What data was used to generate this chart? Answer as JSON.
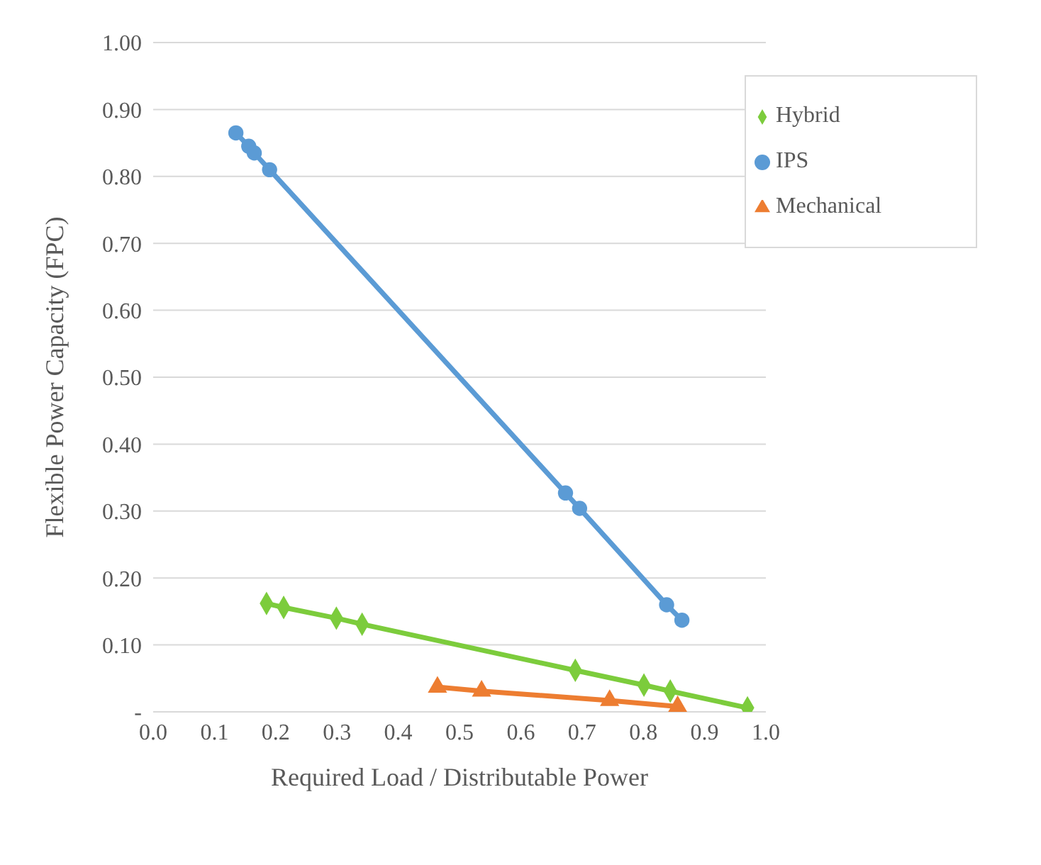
{
  "chart_data": {
    "type": "line",
    "xlabel": "Required Load / Distributable Power",
    "ylabel": "Flexible Power Capacity (FPC)",
    "xlim": [
      0,
      1
    ],
    "xticks": [
      {
        "value": 0,
        "label": "0.0"
      },
      0.1,
      0.2,
      0.3,
      0.4,
      0.5,
      0.6,
      0.7,
      0.8,
      0.9,
      {
        "value": 1,
        "label": "1.0"
      }
    ],
    "ylim": [
      0,
      1
    ],
    "yticks": [
      {
        "value": 0,
        "label": "-"
      },
      {
        "value": 0.1,
        "label": "0.10"
      },
      {
        "value": 0.2,
        "label": "0.20"
      },
      {
        "value": 0.3,
        "label": "0.30"
      },
      {
        "value": 0.4,
        "label": "0.40"
      },
      {
        "value": 0.5,
        "label": "0.50"
      },
      {
        "value": 0.6,
        "label": "0.60"
      },
      {
        "value": 0.7,
        "label": "0.70"
      },
      {
        "value": 0.8,
        "label": "0.80"
      },
      {
        "value": 0.9,
        "label": "0.90"
      },
      {
        "value": 1,
        "label": "1.00"
      }
    ],
    "grid": "y",
    "legend": "top right",
    "line_style": "solid",
    "series": [
      {
        "name": "IPS",
        "color": "#5b9bd5",
        "marker": "circle",
        "x": [
          0.135,
          0.156,
          0.165,
          0.19,
          0.673,
          0.696,
          0.838,
          0.863
        ],
        "values": [
          0.865,
          0.845,
          0.835,
          0.81,
          0.327,
          0.304,
          0.16,
          0.137
        ]
      },
      {
        "name": "Hybrid",
        "color": "#7ccc3c",
        "marker": "diamond",
        "x": [
          0.185,
          0.213,
          0.299,
          0.341,
          0.689,
          0.801,
          0.844,
          0.97
        ],
        "values": [
          0.162,
          0.156,
          0.14,
          0.131,
          0.062,
          0.04,
          0.031,
          0.006
        ]
      },
      {
        "name": "Mechanical",
        "color": "#ed7d31",
        "marker": "triangle",
        "x": [
          0.464,
          0.536,
          0.745,
          0.856
        ],
        "values": [
          0.037,
          0.031,
          0.017,
          0.008
        ]
      }
    ]
  }
}
